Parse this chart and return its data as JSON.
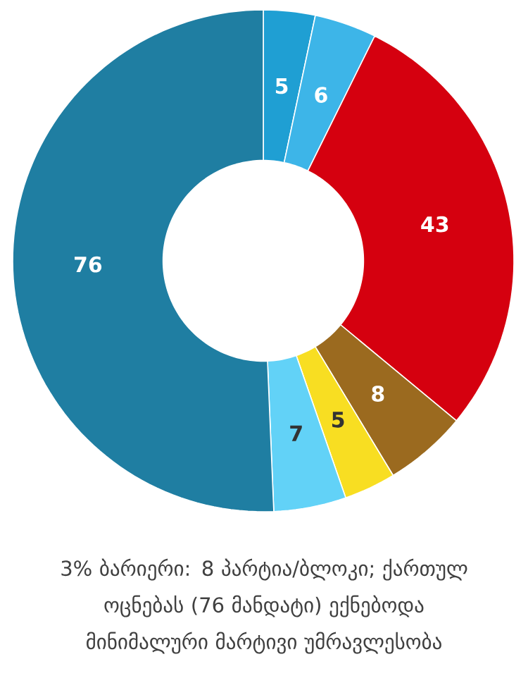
{
  "chart_data": {
    "type": "donut",
    "categories": [
      null,
      null,
      null,
      null,
      null,
      null,
      null
    ],
    "values": [
      5,
      6,
      43,
      8,
      5,
      7,
      76
    ],
    "colors": [
      "#1f9fd3",
      "#3db5e8",
      "#d5000f",
      "#9b6a1f",
      "#f8de22",
      "#62d2f7",
      "#1f7ea2"
    ],
    "data_labels": true,
    "annotations": [
      "3% ბარიერი: 8 პარტია/ბლოკი; ქართულ ოცნებას (76 მანდატი) ექნებოდა მინიმალური მარტივი უმრავლესობა"
    ]
  }
}
